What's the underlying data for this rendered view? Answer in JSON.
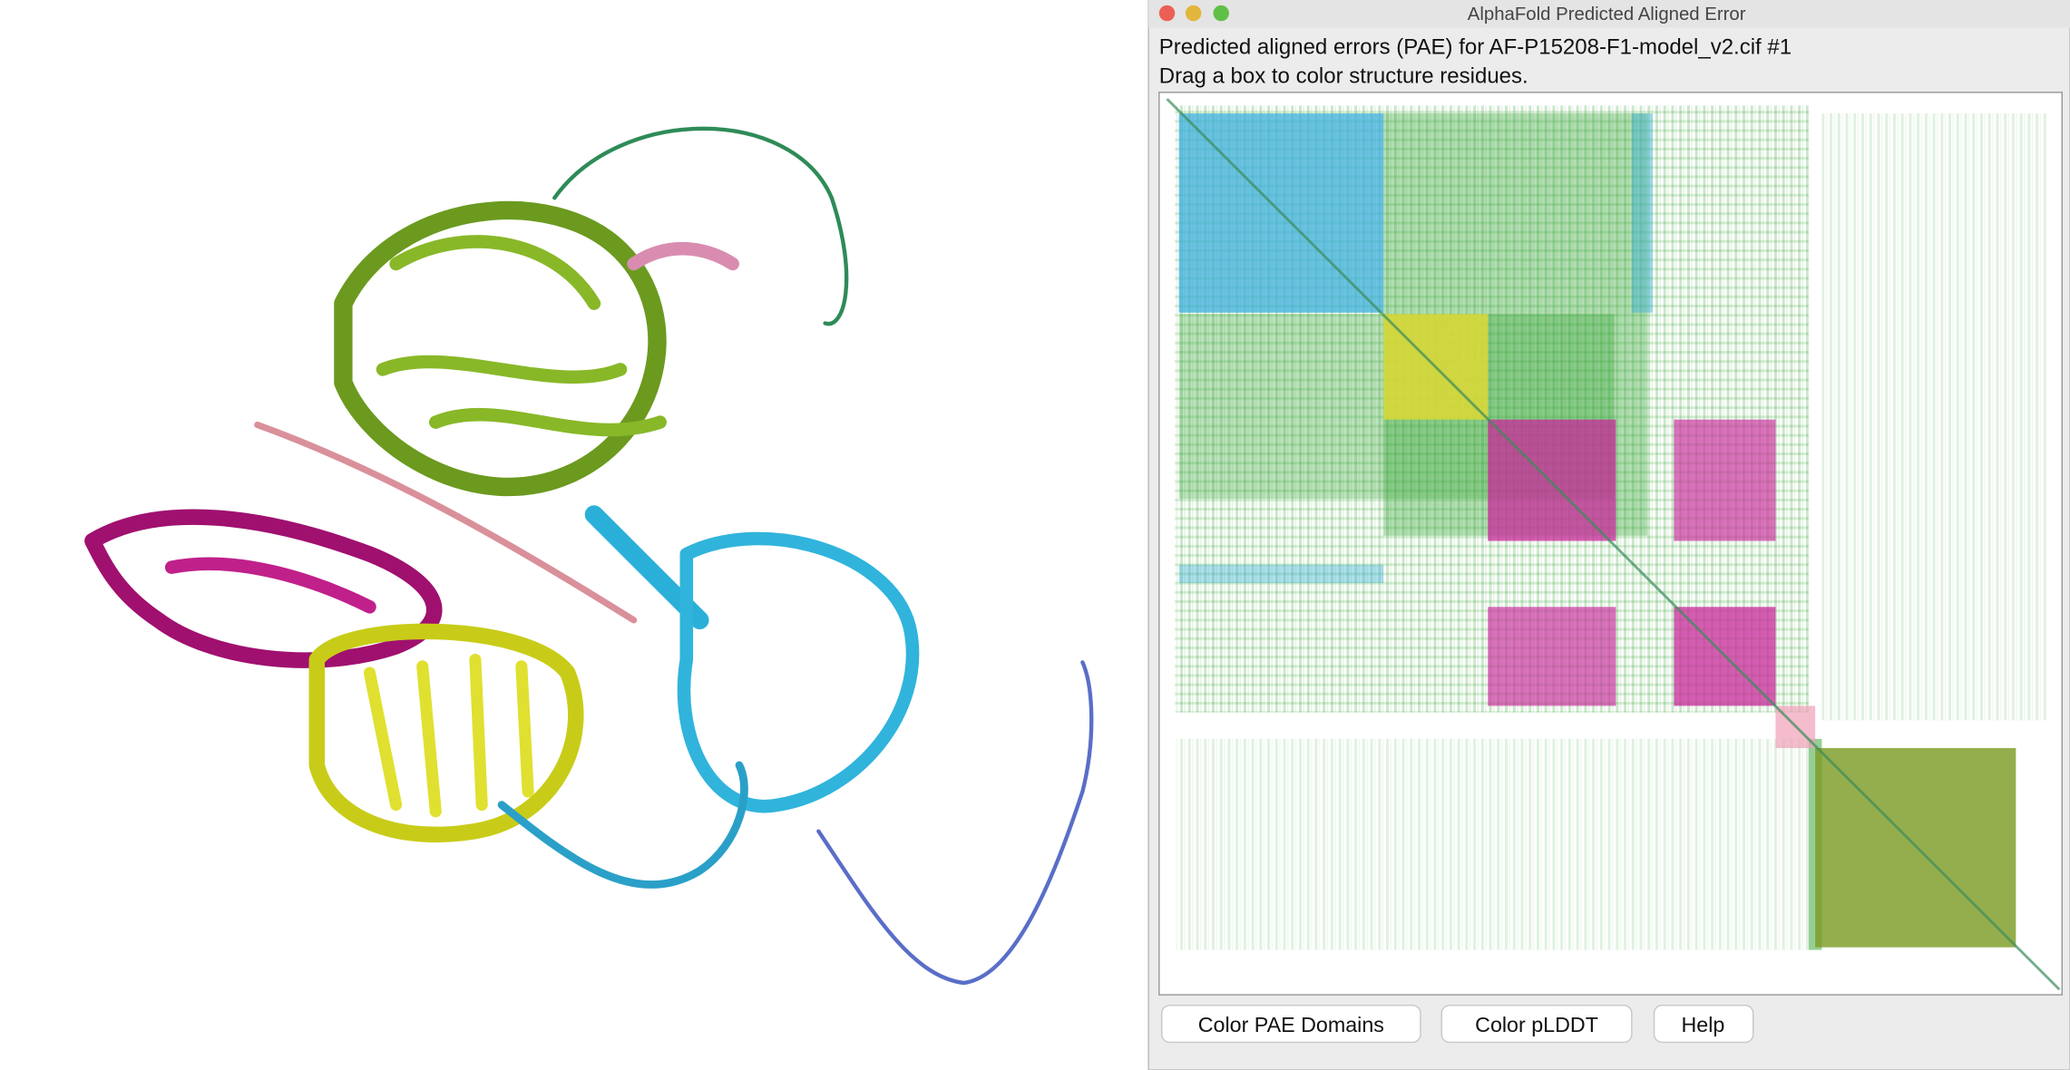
{
  "window": {
    "title": "AlphaFold Predicted Aligned Error",
    "header": [
      "Predicted aligned errors (PAE) for AF-P15208-F1-model_v2.cif #1",
      "Drag a box to color structure residues."
    ],
    "buttons": [
      "Color PAE Domains",
      "Color pLDDT",
      "Help"
    ]
  }
}
